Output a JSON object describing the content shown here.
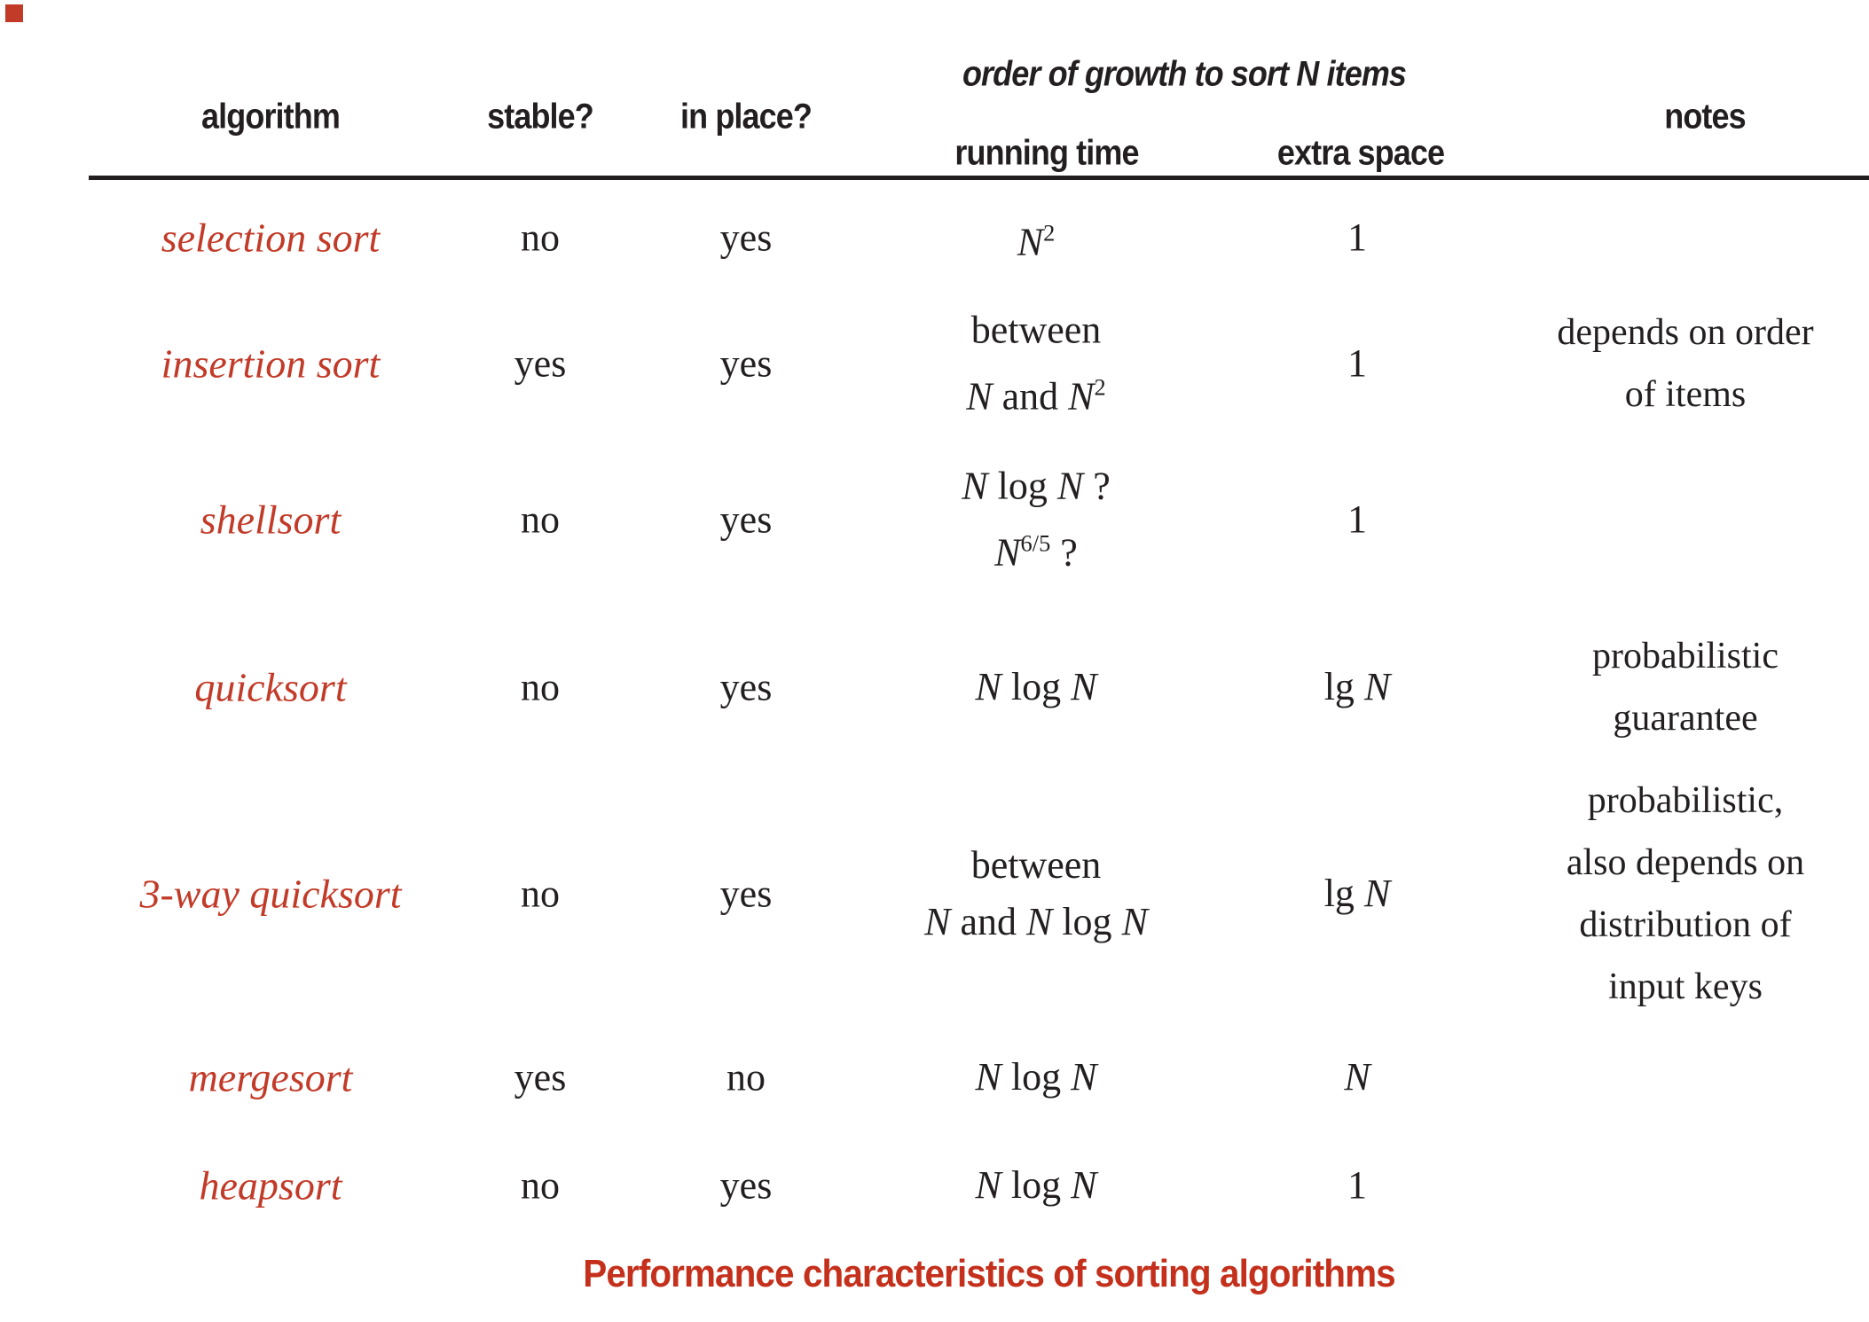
{
  "colors": {
    "ink": "#231f20",
    "accent_red": "#c23a28",
    "caption_red": "#c4301b"
  },
  "corner_marker": {
    "present": true
  },
  "table": {
    "group_header": "order of growth to sort N items",
    "headers": {
      "algorithm": "algorithm",
      "stable": "stable?",
      "in_place": "in place?",
      "running_time": "running time",
      "extra_space": "extra space",
      "notes": "notes"
    },
    "rows": [
      {
        "name": "selection sort",
        "stable": "no",
        "in_place": "yes",
        "running_time": [
          [
            {
              "it": "N"
            },
            {
              "sup": "2"
            }
          ]
        ],
        "extra_space": [
          [
            {
              "rm": "1"
            }
          ]
        ],
        "notes": []
      },
      {
        "name": "insertion sort",
        "stable": "yes",
        "in_place": "yes",
        "running_time": [
          [
            {
              "rm": "between"
            }
          ],
          [
            {
              "it": "N"
            },
            {
              "rm": " and "
            },
            {
              "it": "N"
            },
            {
              "sup": "2"
            }
          ]
        ],
        "extra_space": [
          [
            {
              "rm": "1"
            }
          ]
        ],
        "notes": [
          "depends on order",
          "of items"
        ]
      },
      {
        "name": "shellsort",
        "stable": "no",
        "in_place": "yes",
        "running_time": [
          [
            {
              "it": "N"
            },
            {
              "rm": " log "
            },
            {
              "it": "N"
            },
            {
              "rm": " ?"
            }
          ],
          [
            {
              "it": "N"
            },
            {
              "sup": "6/5"
            },
            {
              "rm": " ?"
            }
          ]
        ],
        "extra_space": [
          [
            {
              "rm": "1"
            }
          ]
        ],
        "notes": []
      },
      {
        "name": "quicksort",
        "stable": "no",
        "in_place": "yes",
        "running_time": [
          [
            {
              "it": "N"
            },
            {
              "rm": " log "
            },
            {
              "it": "N"
            }
          ]
        ],
        "extra_space": [
          [
            {
              "rm": "lg "
            },
            {
              "it": "N"
            }
          ]
        ],
        "notes": [
          "probabilistic",
          "guarantee"
        ]
      },
      {
        "name": "3-way quicksort",
        "stable": "no",
        "in_place": "yes",
        "running_time": [
          [
            {
              "rm": "between"
            }
          ],
          [
            {
              "it": "N"
            },
            {
              "rm": " and "
            },
            {
              "it": "N"
            },
            {
              "rm": " log "
            },
            {
              "it": "N"
            }
          ]
        ],
        "extra_space": [
          [
            {
              "rm": "lg "
            },
            {
              "it": "N"
            }
          ]
        ],
        "notes": [
          "probabilistic,",
          "also depends on",
          "distribution of",
          "input keys"
        ]
      },
      {
        "name": "mergesort",
        "stable": "yes",
        "in_place": "no",
        "running_time": [
          [
            {
              "it": "N"
            },
            {
              "rm": " log "
            },
            {
              "it": "N"
            }
          ]
        ],
        "extra_space": [
          [
            {
              "it": "N"
            }
          ]
        ],
        "notes": []
      },
      {
        "name": "heapsort",
        "stable": "no",
        "in_place": "yes",
        "running_time": [
          [
            {
              "it": "N"
            },
            {
              "rm": " log "
            },
            {
              "it": "N"
            }
          ]
        ],
        "extra_space": [
          [
            {
              "rm": "1"
            }
          ]
        ],
        "notes": []
      }
    ]
  },
  "caption": {
    "text": "Performance characteristics of sorting algorithms"
  }
}
